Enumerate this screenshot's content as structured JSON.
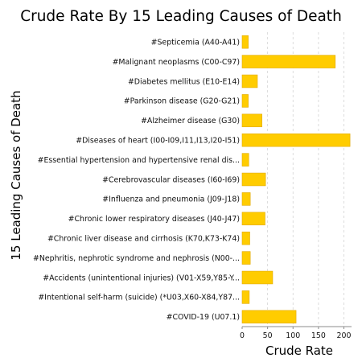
{
  "chart_data": {
    "type": "bar",
    "orientation": "horizontal",
    "title": "Crude Rate By 15 Leading Causes of Death",
    "xlabel": "Crude Rate",
    "ylabel": "15 Leading Causes of Death",
    "categories": [
      "#Septicemia (A40-A41)",
      "#Malignant neoplasms (C00-C97)",
      "#Diabetes mellitus (E10-E14)",
      "#Parkinson disease (G20-G21)",
      "#Alzheimer disease (G30)",
      "#Diseases of heart (I00-I09,I11,I13,I20-I51)",
      "#Essential hypertension and hypertensive renal dis...",
      "#Cerebrovascular diseases (I60-I69)",
      "#Influenza and pneumonia (J09-J18)",
      "#Chronic lower respiratory diseases (J40-J47)",
      "#Chronic liver disease and cirrhosis (K70,K73-K74)",
      "#Nephritis, nephrotic syndrome and nephrosis (N00-...",
      "#Accidents (unintentional injuries) (V01-X59,Y85-Y...",
      "#Intentional self-harm (suicide) (*U03,X60-X84,Y87...",
      "#COVID-19 (U07.1)"
    ],
    "values": [
      12,
      183,
      30,
      12,
      39,
      212,
      13,
      46,
      16,
      45,
      15,
      16,
      60,
      14,
      106
    ],
    "xlim": [
      0,
      215
    ],
    "xticks": [
      0,
      50,
      100,
      150,
      200
    ],
    "grid": true,
    "bar_color": "#ffcc00"
  }
}
